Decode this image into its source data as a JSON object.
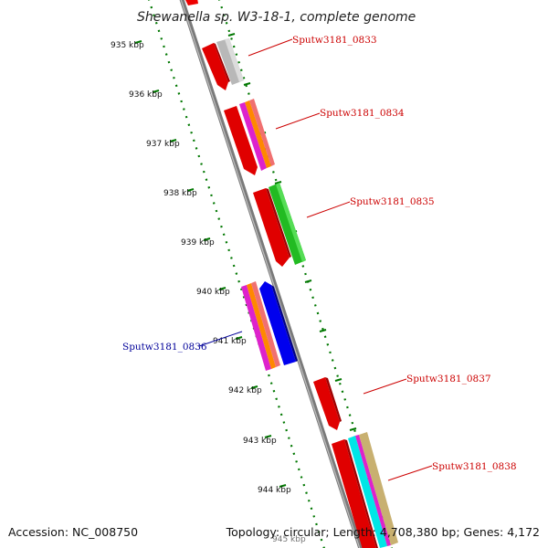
{
  "title": "Shewanella sp. W3-18-1, complete genome",
  "footer": {
    "accession": "Accession: NC_008750",
    "summary": "Topology: circular; Length: 4,708,380 bp; Genes: 4,172"
  },
  "colors": {
    "forward_label": "#cc0000",
    "reverse_label": "#000099",
    "ruler": "#007700",
    "backbone": "#777777",
    "gene_red": "#ee0000",
    "gene_blue": "#0000ee",
    "gene_green": "#22bb22",
    "gene_grey": "#b8b8b8"
  },
  "kbp_marks": [
    {
      "text": "935 kbp"
    },
    {
      "text": "936 kbp"
    },
    {
      "text": "937 kbp"
    },
    {
      "text": "938 kbp"
    },
    {
      "text": "939 kbp"
    },
    {
      "text": "940 kbp"
    },
    {
      "text": "941 kbp"
    },
    {
      "text": "942 kbp"
    },
    {
      "text": "943 kbp"
    },
    {
      "text": "944 kbp"
    },
    {
      "text": "945 kbp"
    }
  ],
  "genes": [
    {
      "label": "Sputw3181_0833",
      "strand": "forward"
    },
    {
      "label": "Sputw3181_0834",
      "strand": "forward"
    },
    {
      "label": "Sputw3181_0835",
      "strand": "forward"
    },
    {
      "label": "Sputw3181_0836",
      "strand": "reverse"
    },
    {
      "label": "Sputw3181_0837",
      "strand": "forward"
    },
    {
      "label": "Sputw3181_0838",
      "strand": "forward"
    }
  ]
}
